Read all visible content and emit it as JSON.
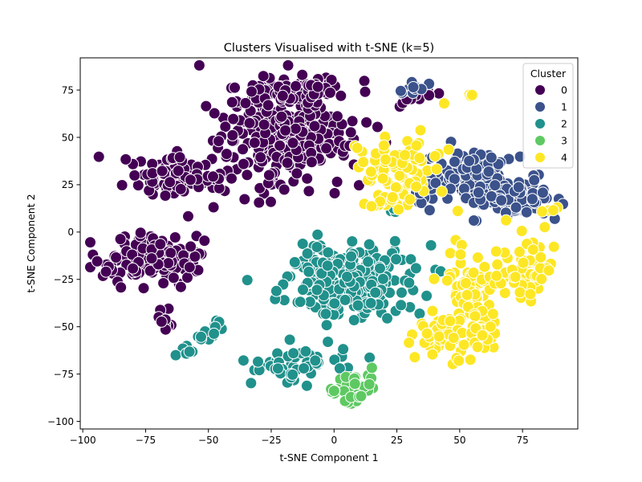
{
  "chart_data": {
    "type": "scatter",
    "title": "Clusters Visualised with t-SNE (k=5)",
    "xlabel": "t-SNE Component 1",
    "ylabel": "t-SNE Component 2",
    "xlim": [
      -101,
      97
    ],
    "ylim": [
      -104,
      92
    ],
    "xticks": [
      -100,
      -75,
      -50,
      -25,
      0,
      25,
      50,
      75
    ],
    "yticks": [
      -100,
      -75,
      -50,
      -25,
      0,
      25,
      50,
      75
    ],
    "grid": false,
    "legend": {
      "title": "Cluster",
      "placement": "top-right"
    },
    "point_style": {
      "stroke": "#ffffff"
    },
    "series": [
      {
        "name": "0",
        "color": "#440154",
        "regions": [
          {
            "center": [
              -20,
              52
            ],
            "spread": [
              26,
              28
            ],
            "count": 280
          },
          {
            "center": [
              -10,
              74
            ],
            "spread": [
              18,
              8
            ],
            "count": 70
          },
          {
            "center": [
              -62,
              30
            ],
            "spread": [
              18,
              13
            ],
            "count": 90
          },
          {
            "center": [
              -72,
              -14
            ],
            "spread": [
              20,
              13
            ],
            "count": 150
          },
          {
            "center": [
              -68,
              -44
            ],
            "spread": [
              4,
              8
            ],
            "count": 10
          },
          {
            "center": [
              32,
              72
            ],
            "spread": [
              10,
              4
            ],
            "count": 14
          }
        ]
      },
      {
        "name": "1",
        "color": "#3b528b",
        "regions": [
          {
            "center": [
              55,
              30
            ],
            "spread": [
              16,
              12
            ],
            "count": 100
          },
          {
            "center": [
              72,
              18
            ],
            "spread": [
              16,
              10
            ],
            "count": 90
          },
          {
            "center": [
              32,
              76
            ],
            "spread": [
              6,
              4
            ],
            "count": 10
          },
          {
            "center": [
              36,
              20
            ],
            "spread": [
              6,
              10
            ],
            "count": 10
          }
        ]
      },
      {
        "name": "2",
        "color": "#21918c",
        "regions": [
          {
            "center": [
              5,
              -25
            ],
            "spread": [
              25,
              18
            ],
            "count": 280
          },
          {
            "center": [
              -15,
              -70
            ],
            "spread": [
              20,
              10
            ],
            "count": 60
          },
          {
            "center": [
              -48,
              -52
            ],
            "spread": [
              7,
              7
            ],
            "count": 18
          },
          {
            "center": [
              -60,
              -64
            ],
            "spread": [
              4,
              3
            ],
            "count": 6
          },
          {
            "center": [
              25,
              12
            ],
            "spread": [
              3,
              3
            ],
            "count": 3
          }
        ]
      },
      {
        "name": "3",
        "color": "#5ec962",
        "regions": [
          {
            "center": [
              7,
              -83
            ],
            "spread": [
              9,
              10
            ],
            "count": 45
          }
        ]
      },
      {
        "name": "4",
        "color": "#fde725",
        "regions": [
          {
            "center": [
              27,
              35
            ],
            "spread": [
              16,
              14
            ],
            "count": 70
          },
          {
            "center": [
              22,
              15
            ],
            "spread": [
              9,
              5
            ],
            "count": 18
          },
          {
            "center": [
              55,
              -30
            ],
            "spread": [
              12,
              22
            ],
            "count": 70
          },
          {
            "center": [
              75,
              -20
            ],
            "spread": [
              12,
              15
            ],
            "count": 60
          },
          {
            "center": [
              42,
              -55
            ],
            "spread": [
              10,
              12
            ],
            "count": 40
          },
          {
            "center": [
              57,
              -55
            ],
            "spread": [
              8,
              10
            ],
            "count": 25
          },
          {
            "center": [
              87,
              12
            ],
            "spread": [
              3,
              2
            ],
            "count": 4
          },
          {
            "center": [
              55,
              72
            ],
            "spread": [
              2,
              1
            ],
            "count": 3
          },
          {
            "center": [
              44,
              68
            ],
            "spread": [
              1,
              1
            ],
            "count": 1
          }
        ]
      }
    ]
  }
}
